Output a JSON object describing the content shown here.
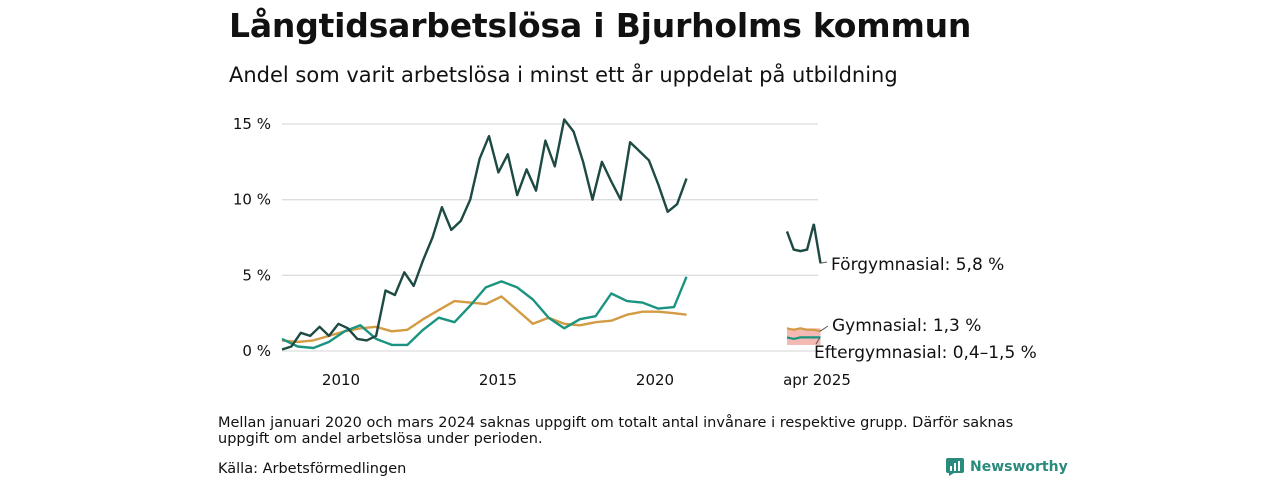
{
  "title": "Långtidsarbetslösa i Bjurholms kommun",
  "subtitle": "Andel som varit arbetslösa i minst ett år uppdelat på utbildning",
  "note": "Mellan januari 2020 och mars 2024 saknas uppgift om totalt antal invånare i respektive grupp. Därför saknas uppgift om andel arbetslösa under perioden.",
  "source": "Källa: Arbetsförmedlingen",
  "brand": {
    "name": "Newsworthy",
    "icon": "newsworthy-logo-icon"
  },
  "colors": {
    "forgymnasial": "#1d4a42",
    "gymnasial": "#d39b43",
    "eftergymnasial": "#1a9480",
    "range": "#f2b1aa",
    "grid": "#dddddd"
  },
  "chart_data": {
    "type": "line",
    "ylim": [
      0,
      15
    ],
    "yticks": [
      0,
      5,
      10,
      15
    ],
    "ytick_labels": [
      "0 %",
      "5 %",
      "10 %",
      "15 %"
    ],
    "xtick_labels": [
      "2010",
      "2015",
      "2020",
      "apr 2025"
    ],
    "grid": true,
    "series": [
      {
        "name": "Förgymnasial",
        "end_label": "Förgymnasial: 5,8 %",
        "color": "#1d4a42",
        "x": [
          2008.0,
          2008.3,
          2008.6,
          2008.9,
          2009.2,
          2009.5,
          2009.8,
          2010.1,
          2010.4,
          2010.7,
          2011.0,
          2011.3,
          2011.6,
          2011.9,
          2012.2,
          2012.5,
          2012.8,
          2013.1,
          2013.4,
          2013.7,
          2014.0,
          2014.3,
          2014.6,
          2014.9,
          2015.2,
          2015.5,
          2015.8,
          2016.1,
          2016.4,
          2016.7,
          2017.0,
          2017.3,
          2017.6,
          2017.9,
          2018.2,
          2018.5,
          2018.8,
          2019.1,
          2019.4,
          2019.7,
          2020.0,
          2020.3,
          2020.6,
          2020.9
        ],
        "y": [
          0.1,
          0.3,
          1.2,
          1.0,
          1.6,
          1.0,
          1.8,
          1.5,
          0.8,
          0.7,
          1.0,
          4.0,
          3.7,
          5.2,
          4.3,
          6.0,
          7.5,
          9.5,
          8.0,
          8.6,
          10.0,
          12.7,
          14.2,
          11.8,
          13.0,
          10.3,
          12.0,
          10.6,
          13.9,
          12.2,
          15.3,
          14.5,
          12.5,
          10.0,
          12.5,
          11.2,
          10.0,
          13.8,
          13.2,
          12.6,
          11.0,
          9.2,
          9.7,
          11.4
        ]
      },
      {
        "name": "Gymnasial",
        "end_label": "Gymnasial: 1,3 %",
        "color": "#d39b43",
        "x": [
          2008.0,
          2008.5,
          2009.0,
          2009.5,
          2010.0,
          2010.5,
          2011.0,
          2011.5,
          2012.0,
          2012.5,
          2013.0,
          2013.5,
          2014.0,
          2014.5,
          2015.0,
          2015.5,
          2016.0,
          2016.5,
          2017.0,
          2017.5,
          2018.0,
          2018.5,
          2019.0,
          2019.5,
          2020.0,
          2020.5,
          2020.9
        ],
        "y": [
          0.7,
          0.6,
          0.7,
          1.0,
          1.3,
          1.5,
          1.6,
          1.3,
          1.4,
          2.1,
          2.7,
          3.3,
          3.2,
          3.1,
          3.6,
          2.7,
          1.8,
          2.2,
          1.8,
          1.7,
          1.9,
          2.0,
          2.4,
          2.6,
          2.6,
          2.5,
          2.4
        ]
      },
      {
        "name": "Eftergymnasial",
        "end_label": "Eftergymnasial: 0,4–1,5 %",
        "color": "#1a9480",
        "x": [
          2008.0,
          2008.5,
          2009.0,
          2009.5,
          2010.0,
          2010.5,
          2011.0,
          2011.5,
          2012.0,
          2012.5,
          2013.0,
          2013.5,
          2014.0,
          2014.5,
          2015.0,
          2015.5,
          2016.0,
          2016.5,
          2017.0,
          2017.5,
          2018.0,
          2018.5,
          2019.0,
          2019.5,
          2020.0,
          2020.5,
          2020.9
        ],
        "y": [
          0.8,
          0.3,
          0.2,
          0.6,
          1.3,
          1.7,
          0.8,
          0.4,
          0.4,
          1.4,
          2.2,
          1.9,
          3.0,
          4.2,
          4.6,
          4.2,
          3.4,
          2.2,
          1.5,
          2.1,
          2.3,
          3.8,
          3.3,
          3.2,
          2.8,
          2.9,
          4.9
        ]
      }
    ],
    "recent": {
      "x": [
        2024.25,
        2024.45,
        2024.65,
        2024.85,
        2025.05,
        2025.25
      ],
      "forgymnasial": [
        7.9,
        6.7,
        6.6,
        6.7,
        8.4,
        5.8
      ],
      "gymnasial": [
        1.5,
        1.4,
        1.5,
        1.4,
        1.4,
        1.3
      ],
      "eftergymnasial": [
        0.9,
        0.8,
        0.9,
        0.9,
        0.9,
        0.9
      ],
      "eftergymnasial_range": [
        0.4,
        1.5
      ]
    }
  }
}
